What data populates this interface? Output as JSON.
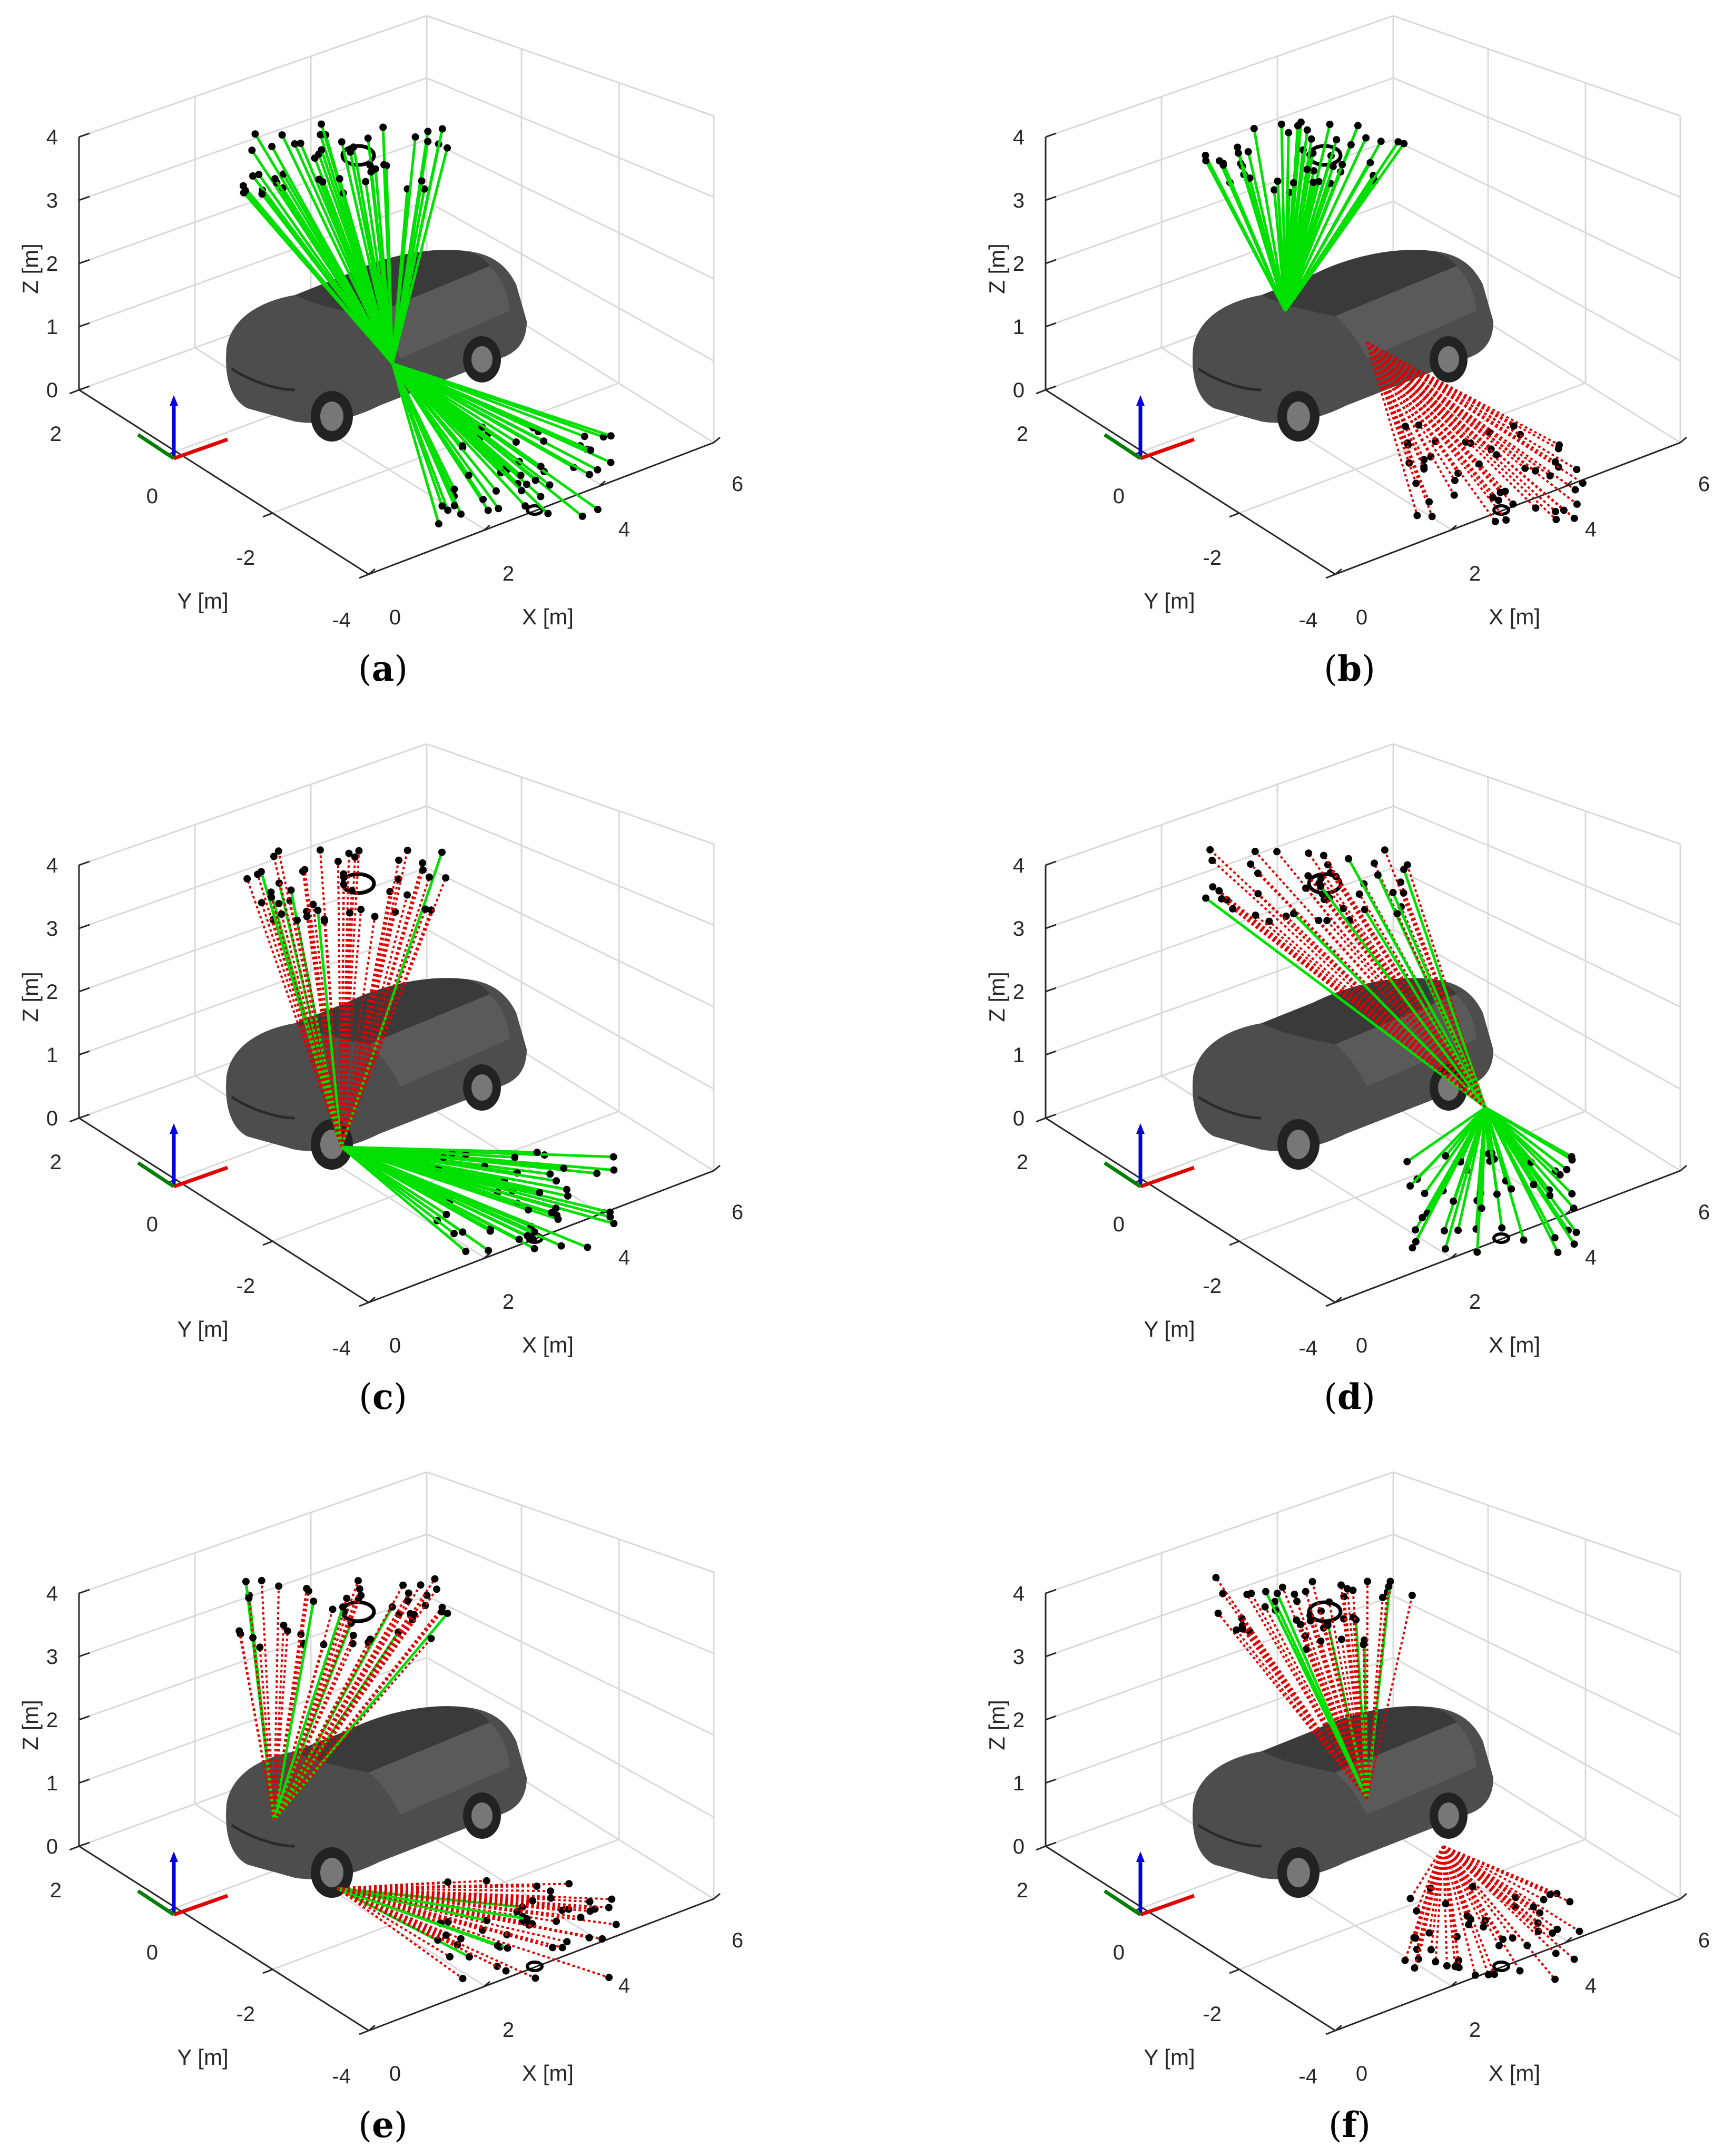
{
  "figure": {
    "axis_labels": {
      "x": "X [m]",
      "y": "Y [m]",
      "z": "Z [m]"
    },
    "ticks": {
      "x": [
        "0",
        "2",
        "4",
        "6"
      ],
      "y": [
        "2",
        "0",
        "-2",
        "-4"
      ],
      "z": [
        "0",
        "1",
        "2",
        "3",
        "4"
      ]
    },
    "colors": {
      "clear_ray": "#00e000",
      "blocked_ray": "#e00000",
      "point": "#000000",
      "car": "#4a4a4a",
      "grid": "#d9d9d9",
      "axis_x": "#e00000",
      "axis_y": "#008000",
      "axis_z": "#0000e0"
    },
    "panels": [
      {
        "label": "a",
        "top_origin": "car-center",
        "top_state": "clear",
        "bottom_origin": "car-center",
        "bottom_state": "clear"
      },
      {
        "label": "b",
        "top_origin": "car-windshield",
        "top_state": "clear",
        "bottom_origin": "car-roof",
        "bottom_state": "blocked"
      },
      {
        "label": "c",
        "top_origin": "car-front-wheel",
        "top_state": "mixed-mostly-blocked",
        "bottom_origin": "car-front-wheel",
        "bottom_state": "clear"
      },
      {
        "label": "d",
        "top_origin": "car-rear",
        "top_state": "mixed-mostly-blocked",
        "bottom_origin": "car-rear",
        "bottom_state": "clear"
      },
      {
        "label": "e",
        "top_origin": "car-hood-left",
        "top_state": "mixed-mostly-blocked",
        "bottom_origin": "car-front-bumper",
        "bottom_state": "mixed-mostly-blocked"
      },
      {
        "label": "f",
        "top_origin": "car-roof",
        "top_state": "mixed-mostly-blocked",
        "bottom_origin": "car-rear-door",
        "bottom_state": "blocked"
      }
    ]
  }
}
